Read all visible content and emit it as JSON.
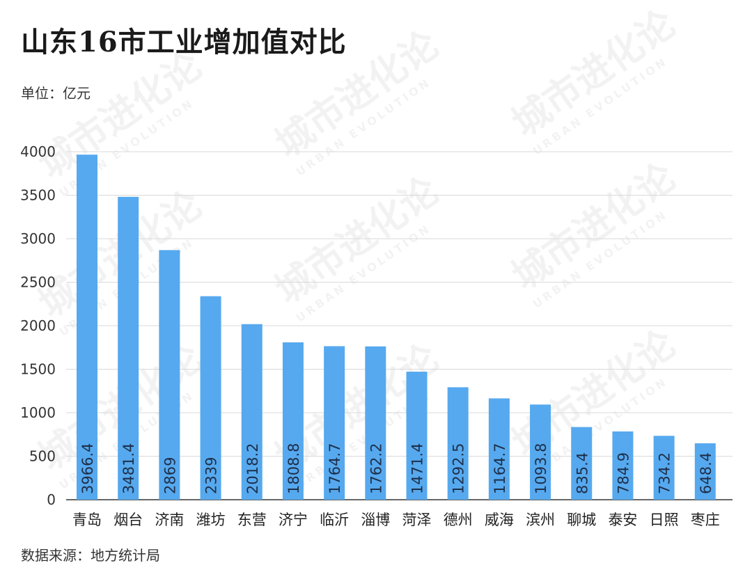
{
  "title": "山东16市工业增加值对比",
  "unit": "单位：亿元",
  "source": "数据来源：地方统计局",
  "watermark": "城市进化论",
  "watermark_en": "URBAN EVOLUTION",
  "colors": {
    "bar": "#56a9ee",
    "grid": "#d9d9d9",
    "axis": "#333333"
  },
  "chart_data": {
    "type": "bar",
    "title": "山东16市工业增加值对比",
    "xlabel": "",
    "ylabel": "",
    "ylim": [
      0,
      4000
    ],
    "yticks": [
      0,
      500,
      1000,
      1500,
      2000,
      2500,
      3000,
      3500,
      4000
    ],
    "grid": true,
    "categories": [
      "青岛",
      "烟台",
      "济南",
      "潍坊",
      "东营",
      "济宁",
      "临沂",
      "淄博",
      "菏泽",
      "德州",
      "威海",
      "滨州",
      "聊城",
      "泰安",
      "日照",
      "枣庄"
    ],
    "values": [
      3966.4,
      3481.4,
      2869,
      2339,
      2018.2,
      1808.8,
      1764.7,
      1762.2,
      1471.4,
      1292.5,
      1164.7,
      1093.8,
      835.4,
      784.9,
      734.2,
      648.4
    ],
    "data_labels": [
      "3966.4",
      "3481.4",
      "2869",
      "2339",
      "2018.2",
      "1808.8",
      "1764.7",
      "1762.2",
      "1471.4",
      "1292.5",
      "1164.7",
      "1093.8",
      "835.4",
      "784.9",
      "734.2",
      "648.4"
    ]
  }
}
